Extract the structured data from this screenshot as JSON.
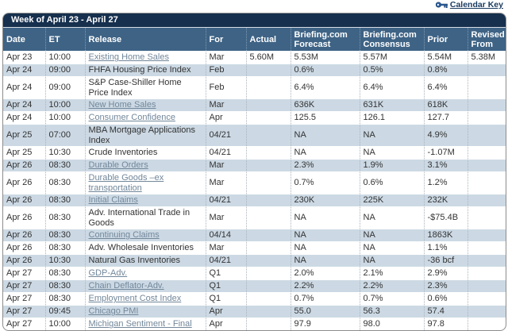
{
  "page": {
    "calendar_key_label": "Calendar Key",
    "key_icon": "key-icon",
    "key_icon_color": "#2e64a8",
    "colors": {
      "title_bar": "#16304e",
      "header_bar": "#3e6385",
      "stripe_row": "#ccd9e4",
      "link_text": "#72879a",
      "body_text": "#333333"
    }
  },
  "table": {
    "title": "Week of April 23 - April 27",
    "columns": [
      "Date",
      "ET",
      "Release",
      "For",
      "Actual",
      "Briefing.com Forecast",
      "Briefing.com Consensus",
      "Prior",
      "Revised From"
    ],
    "rows": [
      {
        "date": "Apr 23",
        "et": "10:00",
        "release": "Existing Home Sales",
        "link": true,
        "for": "Mar",
        "actual": "5.60M",
        "forecast": "5.53M",
        "consensus": "5.57M",
        "prior": "5.54M",
        "revised": "5.38M"
      },
      {
        "date": "Apr 24",
        "et": "09:00",
        "release": "FHFA Housing Price Index",
        "link": false,
        "for": "Feb",
        "actual": "",
        "forecast": "0.6%",
        "consensus": "0.5%",
        "prior": "0.8%",
        "revised": ""
      },
      {
        "date": "Apr 24",
        "et": "09:00",
        "release": "S&P Case-Shiller Home Price Index",
        "link": false,
        "for": "Feb",
        "actual": "",
        "forecast": "6.4%",
        "consensus": "6.4%",
        "prior": "6.4%",
        "revised": ""
      },
      {
        "date": "Apr 24",
        "et": "10:00",
        "release": "New Home Sales",
        "link": true,
        "for": "Mar",
        "actual": "",
        "forecast": "636K",
        "consensus": "631K",
        "prior": "618K",
        "revised": ""
      },
      {
        "date": "Apr 24",
        "et": "10:00",
        "release": "Consumer Confidence",
        "link": true,
        "for": "Apr",
        "actual": "",
        "forecast": "125.5",
        "consensus": "126.1",
        "prior": "127.7",
        "revised": ""
      },
      {
        "date": "Apr 25",
        "et": "07:00",
        "release": "MBA Mortgage Applications Index",
        "link": false,
        "for": "04/21",
        "actual": "",
        "forecast": "NA",
        "consensus": "NA",
        "prior": "4.9%",
        "revised": ""
      },
      {
        "date": "Apr 25",
        "et": "10:30",
        "release": "Crude Inventories",
        "link": false,
        "for": "04/21",
        "actual": "",
        "forecast": "NA",
        "consensus": "NA",
        "prior": "-1.07M",
        "revised": ""
      },
      {
        "date": "Apr 26",
        "et": "08:30",
        "release": "Durable Orders",
        "link": true,
        "for": "Mar",
        "actual": "",
        "forecast": "2.3%",
        "consensus": "1.9%",
        "prior": "3.1%",
        "revised": ""
      },
      {
        "date": "Apr 26",
        "et": "08:30",
        "release": "Durable Goods –ex transportation",
        "link": true,
        "for": "Mar",
        "actual": "",
        "forecast": "0.7%",
        "consensus": "0.6%",
        "prior": "1.2%",
        "revised": ""
      },
      {
        "date": "Apr 26",
        "et": "08:30",
        "release": "Initial Claims",
        "link": true,
        "for": "04/21",
        "actual": "",
        "forecast": "230K",
        "consensus": "225K",
        "prior": "232K",
        "revised": ""
      },
      {
        "date": "Apr 26",
        "et": "08:30",
        "release": "Adv. International Trade in Goods",
        "link": false,
        "for": "Mar",
        "actual": "",
        "forecast": "NA",
        "consensus": "NA",
        "prior": "-$75.4B",
        "revised": ""
      },
      {
        "date": "Apr 26",
        "et": "08:30",
        "release": "Continuing Claims",
        "link": true,
        "for": "04/14",
        "actual": "",
        "forecast": "NA",
        "consensus": "NA",
        "prior": "1863K",
        "revised": ""
      },
      {
        "date": "Apr 26",
        "et": "08:30",
        "release": "Adv. Wholesale Inventories",
        "link": false,
        "for": "Mar",
        "actual": "",
        "forecast": "NA",
        "consensus": "NA",
        "prior": "1.1%",
        "revised": ""
      },
      {
        "date": "Apr 26",
        "et": "10:30",
        "release": "Natural Gas Inventories",
        "link": false,
        "for": "04/21",
        "actual": "",
        "forecast": "NA",
        "consensus": "NA",
        "prior": "-36 bcf",
        "revised": ""
      },
      {
        "date": "Apr 27",
        "et": "08:30",
        "release": "GDP-Adv.",
        "link": true,
        "for": "Q1",
        "actual": "",
        "forecast": "2.0%",
        "consensus": "2.1%",
        "prior": "2.9%",
        "revised": ""
      },
      {
        "date": "Apr 27",
        "et": "08:30",
        "release": "Chain Deflator-Adv.",
        "link": true,
        "for": "Q1",
        "actual": "",
        "forecast": "2.2%",
        "consensus": "2.2%",
        "prior": "2.3%",
        "revised": ""
      },
      {
        "date": "Apr 27",
        "et": "08:30",
        "release": "Employment Cost Index",
        "link": true,
        "for": "Q1",
        "actual": "",
        "forecast": "0.7%",
        "consensus": "0.7%",
        "prior": "0.6%",
        "revised": ""
      },
      {
        "date": "Apr 27",
        "et": "09:45",
        "release": "Chicago PMI",
        "link": true,
        "for": "Apr",
        "actual": "",
        "forecast": "55.0",
        "consensus": "56.3",
        "prior": "57.4",
        "revised": ""
      },
      {
        "date": "Apr 27",
        "et": "10:00",
        "release": "Michigan Sentiment - Final",
        "link": true,
        "for": "Apr",
        "actual": "",
        "forecast": "97.9",
        "consensus": "98.0",
        "prior": "97.8",
        "revised": ""
      }
    ]
  }
}
